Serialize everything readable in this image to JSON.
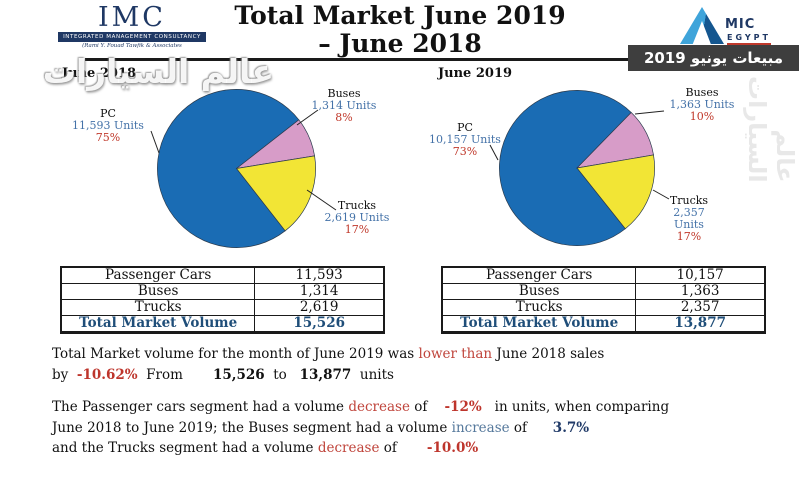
{
  "header": {
    "imc_logo": {
      "acronym": "IMC",
      "bar_text": "Integrated Management Consultancy",
      "tagline": "(Rami Y. Fouad Tawfik & Associates"
    },
    "title_line1": "Total Market June 2019",
    "title_line2": "– June 2018",
    "amic_logo": {
      "mic": "MIC",
      "egypt": "EGYPT"
    },
    "banner_text": "مبيعات يونيو 2019"
  },
  "watermark": {
    "text": "عالم السيارات"
  },
  "chart_data": [
    {
      "type": "pie",
      "title": "June 2018",
      "categories": [
        "PC",
        "Buses",
        "Trucks"
      ],
      "values": [
        11593,
        1314,
        2619
      ],
      "percentages": [
        75,
        8,
        17
      ],
      "unit": "Units",
      "colors": [
        "#1A6CB4",
        "#D79CC8",
        "#F2E535"
      ],
      "start_angle": 142,
      "legend": "none",
      "labels": [
        {
          "name": "PC",
          "units": "11,593 Units",
          "pct": "75%"
        },
        {
          "name": "Buses",
          "units": "1,314 Units",
          "pct": "8%"
        },
        {
          "name": "Trucks",
          "units": "2,619 Units",
          "pct": "17%"
        }
      ]
    },
    {
      "type": "pie",
      "title": "June 2019",
      "categories": [
        "PC",
        "Buses",
        "Trucks"
      ],
      "values": [
        10157,
        1363,
        2357
      ],
      "percentages": [
        73,
        10,
        17
      ],
      "unit": "Units",
      "colors": [
        "#1A6CB4",
        "#D79CC8",
        "#F2E535"
      ],
      "start_angle": 141.5,
      "legend": "none",
      "labels": [
        {
          "name": "PC",
          "units": "10,157 Units",
          "pct": "73%"
        },
        {
          "name": "Buses",
          "units": "1,363 Units",
          "pct": "10%"
        },
        {
          "name": "Trucks",
          "units": "2,357 Units",
          "pct": "17%"
        }
      ]
    }
  ],
  "tables": [
    {
      "rows": [
        [
          "Passenger Cars",
          "11,593"
        ],
        [
          "Buses",
          "1,314"
        ],
        [
          "Trucks",
          "2,619"
        ]
      ],
      "total_label": "Total Market Volume",
      "total_value": "15,526"
    },
    {
      "rows": [
        [
          "Passenger Cars",
          "10,157"
        ],
        [
          "Buses",
          "1,363"
        ],
        [
          "Trucks",
          "2,357"
        ]
      ],
      "total_label": "Total Market Volume",
      "total_value": "13,877"
    }
  ],
  "analysis": {
    "p1": [
      [
        {
          "t": "Total Market volume for the month of June 2019 was "
        },
        {
          "t": "lower than",
          "c": "red"
        },
        {
          "t": " June 2018 sales"
        }
      ],
      [
        {
          "t": "by  "
        },
        {
          "t": "-10.62%",
          "c": "redb"
        },
        {
          "t": "  From       "
        },
        {
          "t": "15,526",
          "c": "b"
        },
        {
          "t": "  to   "
        },
        {
          "t": "13,877",
          "c": "b"
        },
        {
          "t": "  units"
        }
      ]
    ],
    "p2": [
      [
        {
          "t": "The Passenger cars segment had a volume "
        },
        {
          "t": "decrease",
          "c": "red"
        },
        {
          "t": " of    "
        },
        {
          "t": "-12%",
          "c": "redb"
        },
        {
          "t": "   in units, when comparing"
        }
      ],
      [
        {
          "t": "June 2018 to June 2019; the Buses segment had a volume "
        },
        {
          "t": "increase",
          "c": "blue"
        },
        {
          "t": " of      "
        },
        {
          "t": "3.7%",
          "c": "navyb"
        }
      ],
      [
        {
          "t": "and the Trucks segment had a volume "
        },
        {
          "t": "decrease",
          "c": "red"
        },
        {
          "t": " of       "
        },
        {
          "t": "-10.0%",
          "c": "redb"
        }
      ]
    ]
  }
}
